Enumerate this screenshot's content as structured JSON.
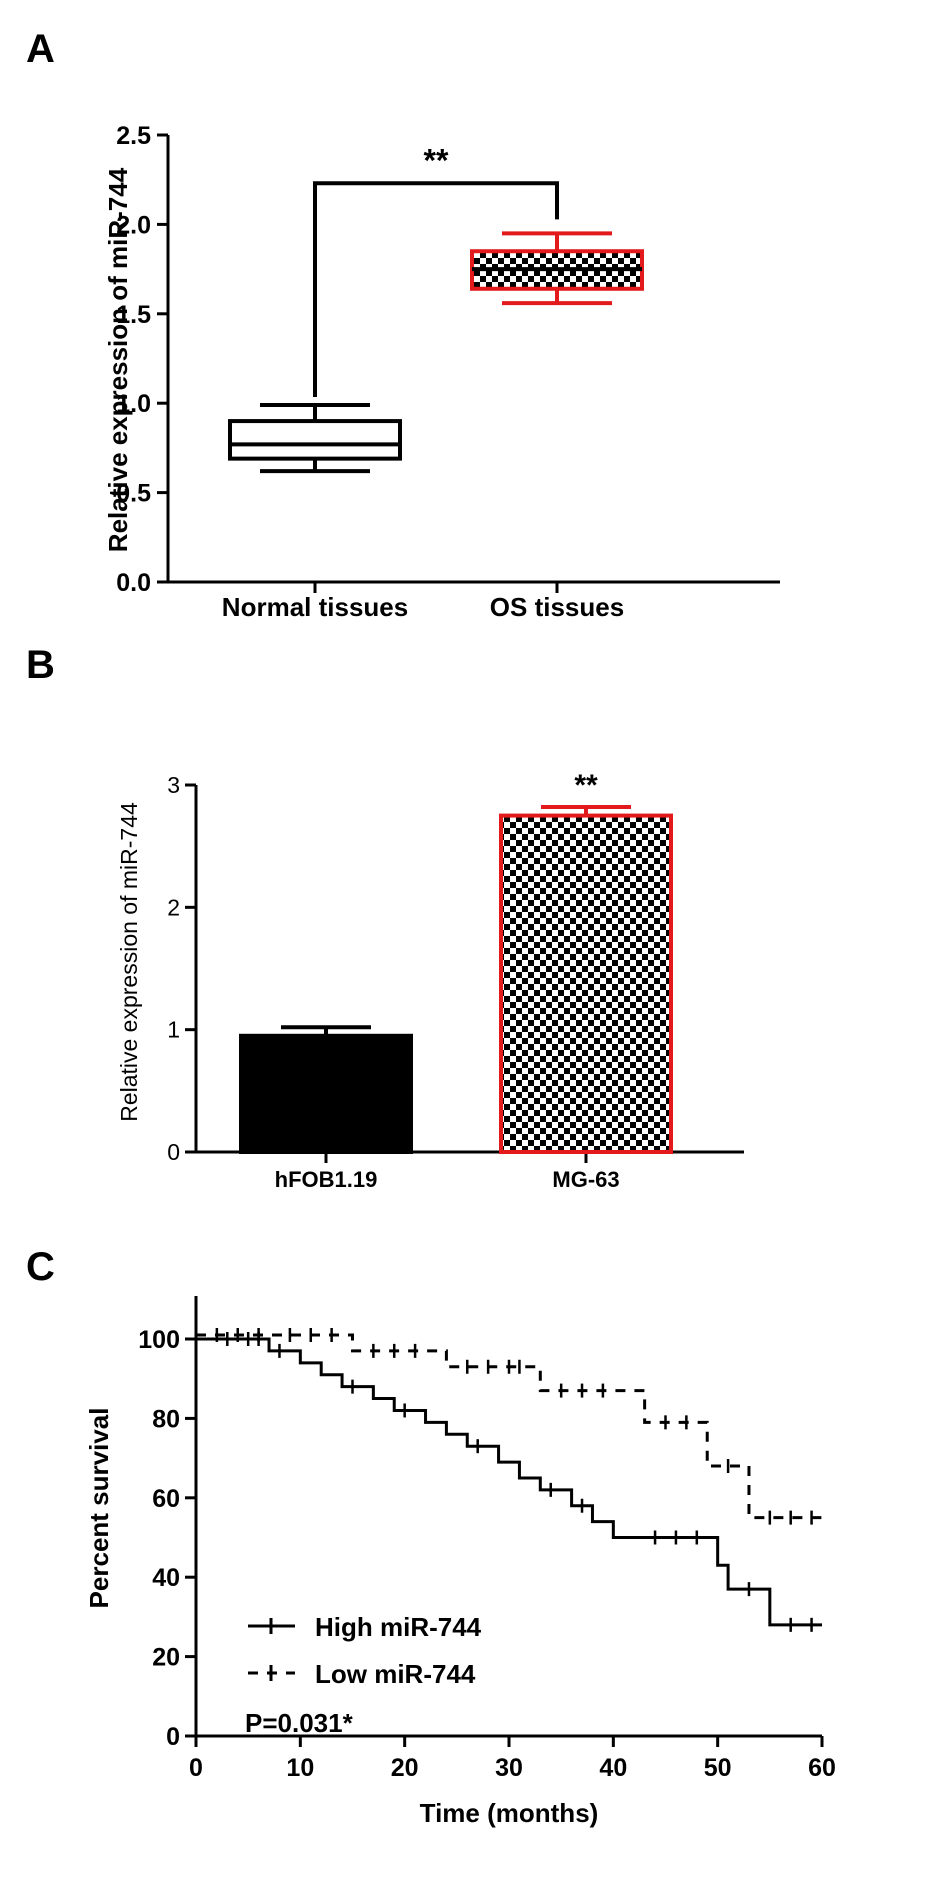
{
  "colors": {
    "ink": "#000000",
    "accent": "#e31a1c",
    "background": "#ffffff"
  },
  "chart_data": [
    {
      "panel": "A",
      "type": "box",
      "ylabel": "Relative expression of miR-744",
      "ylim": [
        0,
        2.5
      ],
      "yticks": [
        "0.0",
        "0.5",
        "1.0",
        "1.5",
        "2.0",
        "2.5"
      ],
      "categories": [
        "Normal  tissues",
        "OS tissues"
      ],
      "boxes": [
        {
          "min": 0.62,
          "q1": 0.69,
          "median": 0.77,
          "q3": 0.9,
          "max": 0.99,
          "style": "plain"
        },
        {
          "min": 1.56,
          "q1": 1.64,
          "median": 1.75,
          "q3": 1.85,
          "max": 1.95,
          "style": "checkered"
        }
      ],
      "significance": {
        "label": "**",
        "y": 2.23
      }
    },
    {
      "panel": "B",
      "type": "bar",
      "ylabel": "Relative expression of miR-744",
      "ylim": [
        0,
        3
      ],
      "yticks": [
        "0",
        "1",
        "2",
        "3"
      ],
      "categories": [
        "hFOB1.19",
        "MG-63"
      ],
      "values": [
        0.95,
        2.75
      ],
      "errors": [
        0.07,
        0.07
      ],
      "styles": [
        "solid",
        "checkered"
      ],
      "significance": {
        "label": "**"
      }
    },
    {
      "panel": "C",
      "type": "line",
      "xlabel": "Time (months)",
      "ylabel": "Percent survival",
      "xlim": [
        0,
        60
      ],
      "ylim": [
        0,
        110
      ],
      "xticks": [
        "0",
        "10",
        "20",
        "30",
        "40",
        "50",
        "60"
      ],
      "yticks": [
        "0",
        "20",
        "40",
        "60",
        "80",
        "100"
      ],
      "annotation": "P=0.031*",
      "series": [
        {
          "name": "High miR-744",
          "style": "solid",
          "steps": [
            [
              0,
              100
            ],
            [
              7,
              97
            ],
            [
              10,
              94
            ],
            [
              12,
              91
            ],
            [
              14,
              88
            ],
            [
              17,
              85
            ],
            [
              19,
              82
            ],
            [
              22,
              79
            ],
            [
              24,
              76
            ],
            [
              26,
              73
            ],
            [
              29,
              69
            ],
            [
              31,
              65
            ],
            [
              33,
              62
            ],
            [
              36,
              58
            ],
            [
              38,
              54
            ],
            [
              40,
              50
            ],
            [
              45,
              50
            ],
            [
              50,
              43
            ],
            [
              51,
              37
            ],
            [
              55,
              28
            ],
            [
              60,
              28
            ]
          ],
          "censored": [
            3,
            5,
            6,
            8,
            15,
            20,
            27,
            34,
            37,
            44,
            46,
            48,
            53,
            57,
            59
          ]
        },
        {
          "name": "Low miR-744",
          "style": "dashed",
          "steps": [
            [
              0,
              100
            ],
            [
              15,
              96
            ],
            [
              24,
              92
            ],
            [
              33,
              86
            ],
            [
              43,
              78
            ],
            [
              49,
              67
            ],
            [
              53,
              54
            ],
            [
              60,
              54
            ]
          ],
          "censored": [
            2,
            4,
            6,
            9,
            11,
            13,
            17,
            19,
            21,
            26,
            28,
            30,
            31,
            35,
            37,
            39,
            45,
            47,
            51,
            55,
            57,
            59
          ]
        }
      ]
    }
  ]
}
